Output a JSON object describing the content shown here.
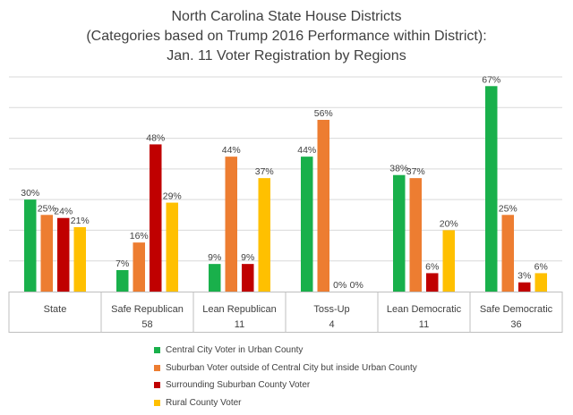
{
  "title_lines": [
    "North Carolina State House Districts",
    "(Categories based on Trump 2016 Performance within District):",
    "Jan. 11 Voter Registration by Regions"
  ],
  "chart_data": {
    "type": "bar",
    "categories": [
      "State",
      "Safe Republican",
      "Lean Republican",
      "Toss-Up",
      "Lean Democratic",
      "Safe Democratic"
    ],
    "district_counts": [
      "",
      "58",
      "11",
      "4",
      "11",
      "36"
    ],
    "ylim": [
      0,
      70
    ],
    "gridlines": true,
    "legend_position": "bottom",
    "series": [
      {
        "name": "Central City Voter in Urban County",
        "color": "#19b04b",
        "values": [
          30,
          7,
          9,
          44,
          38,
          67
        ]
      },
      {
        "name": "Suburban Voter outside of Central City but inside Urban County",
        "color": "#ed7d31",
        "values": [
          25,
          16,
          44,
          56,
          37,
          25
        ]
      },
      {
        "name": "Surrounding Suburban County Voter",
        "color": "#c00000",
        "values": [
          24,
          48,
          9,
          0,
          6,
          3
        ]
      },
      {
        "name": "Rural County Voter",
        "color": "#ffc000",
        "values": [
          21,
          29,
          37,
          0,
          20,
          6
        ]
      }
    ],
    "value_suffix": "%"
  }
}
